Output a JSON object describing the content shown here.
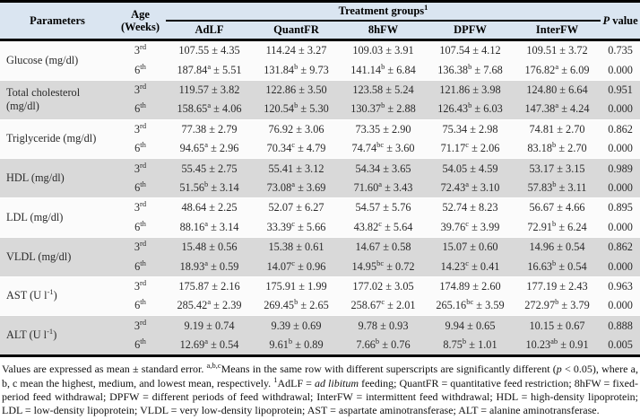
{
  "header": {
    "parameters": "Parameters",
    "age_line1": "Age",
    "age_line2": "(Weeks)",
    "treatment_groups": "Treatment groups^1^",
    "p_value": "~P~ value",
    "columns": [
      "AdLF",
      "QuantFR",
      "8hFW",
      "DPFW",
      "InterFW"
    ]
  },
  "groups": [
    {
      "parameter": "Glucose (mg/dl)",
      "rows": [
        {
          "age": "3^rd^",
          "cells": [
            [
              "107.55",
              "",
              "4.35"
            ],
            [
              "114.24",
              "",
              "3.27"
            ],
            [
              "109.03",
              "",
              "3.91"
            ],
            [
              "107.54",
              "",
              "4.12"
            ],
            [
              "109.51",
              "",
              "3.72"
            ]
          ],
          "p": "0.735"
        },
        {
          "age": "6^th^",
          "cells": [
            [
              "187.84",
              "a",
              "5.51"
            ],
            [
              "131.84",
              "b",
              "9.73"
            ],
            [
              "141.14",
              "b",
              "6.84"
            ],
            [
              "136.38",
              "b",
              "7.68"
            ],
            [
              "176.82",
              "a",
              "6.09"
            ]
          ],
          "p": "0.000"
        }
      ]
    },
    {
      "parameter": "Total cholesterol (mg/dl)",
      "rows": [
        {
          "age": "3^rd^",
          "cells": [
            [
              "119.57",
              "",
              "3.82"
            ],
            [
              "122.86",
              "",
              "3.50"
            ],
            [
              "123.58",
              "",
              "5.24"
            ],
            [
              "121.86",
              "",
              "3.98"
            ],
            [
              "124.80",
              "",
              "6.64"
            ]
          ],
          "p": "0.951"
        },
        {
          "age": "6^th^",
          "cells": [
            [
              "158.65",
              "a",
              "4.06"
            ],
            [
              "120.54",
              "b",
              "5.30"
            ],
            [
              "130.37",
              "b",
              "2.88"
            ],
            [
              "126.43",
              "b",
              "6.03"
            ],
            [
              "147.38",
              "a",
              "4.24"
            ]
          ],
          "p": "0.000"
        }
      ]
    },
    {
      "parameter": "Triglyceride (mg/dl)",
      "rows": [
        {
          "age": "3^rd^",
          "cells": [
            [
              "77.38",
              "",
              "2.79"
            ],
            [
              "76.92",
              "",
              "3.06"
            ],
            [
              "73.35",
              "",
              "2.90"
            ],
            [
              "75.34",
              "",
              "2.98"
            ],
            [
              "74.81",
              "",
              "2.70"
            ]
          ],
          "p": "0.862"
        },
        {
          "age": "6^th^",
          "cells": [
            [
              "94.65",
              "a",
              "2.96"
            ],
            [
              "70.34",
              "c",
              "4.79"
            ],
            [
              "74.74",
              "bc",
              "3.60"
            ],
            [
              "71.17",
              "c",
              "2.06"
            ],
            [
              "83.18",
              "b",
              "2.70"
            ]
          ],
          "p": "0.000"
        }
      ]
    },
    {
      "parameter": "HDL (mg/dl)",
      "rows": [
        {
          "age": "3^rd^",
          "cells": [
            [
              "55.45",
              "",
              "2.75"
            ],
            [
              "55.41",
              "",
              "3.12"
            ],
            [
              "54.34",
              "",
              "3.65"
            ],
            [
              "54.05",
              "",
              "4.59"
            ],
            [
              "53.17",
              "",
              "3.15"
            ]
          ],
          "p": "0.989"
        },
        {
          "age": "6^th^",
          "cells": [
            [
              "51.56",
              "b",
              "3.14"
            ],
            [
              "73.08",
              "a",
              "3.69"
            ],
            [
              "71.60",
              "a",
              "3.43"
            ],
            [
              "72.43",
              "a",
              "3.10"
            ],
            [
              "57.83",
              "b",
              "3.11"
            ]
          ],
          "p": "0.000"
        }
      ]
    },
    {
      "parameter": "LDL (mg/dl)",
      "rows": [
        {
          "age": "3^rd^",
          "cells": [
            [
              "48.64",
              "",
              "2.25"
            ],
            [
              "52.07",
              "",
              "6.27"
            ],
            [
              "54.57",
              "",
              "5.76"
            ],
            [
              "52.74",
              "",
              "8.23"
            ],
            [
              "56.67",
              "",
              "4.66"
            ]
          ],
          "p": "0.895"
        },
        {
          "age": "6^th^",
          "cells": [
            [
              "88.16",
              "a",
              "3.14"
            ],
            [
              "33.39",
              "c",
              "5.66"
            ],
            [
              "43.82",
              "c",
              "5.64"
            ],
            [
              "39.76",
              "c",
              "3.99"
            ],
            [
              "72.91",
              "b",
              "6.24"
            ]
          ],
          "p": "0.000"
        }
      ]
    },
    {
      "parameter": "VLDL (mg/dl)",
      "rows": [
        {
          "age": "3^rd^",
          "cells": [
            [
              "15.48",
              "",
              "0.56"
            ],
            [
              "15.38",
              "",
              "0.61"
            ],
            [
              "14.67",
              "",
              "0.58"
            ],
            [
              "15.07",
              "",
              "0.60"
            ],
            [
              "14.96",
              "",
              "0.54"
            ]
          ],
          "p": "0.862"
        },
        {
          "age": "6^th^",
          "cells": [
            [
              "18.93",
              "a",
              "0.59"
            ],
            [
              "14.07",
              "c",
              "0.96"
            ],
            [
              "14.95",
              "bc",
              "0.72"
            ],
            [
              "14.23",
              "c",
              "0.41"
            ],
            [
              "16.63",
              "b",
              "0.54"
            ]
          ],
          "p": "0.000"
        }
      ]
    },
    {
      "parameter": "AST (U l^-1^)",
      "rows": [
        {
          "age": "3^rd^",
          "cells": [
            [
              "175.87",
              "",
              "2.16"
            ],
            [
              "175.91",
              "",
              "1.99"
            ],
            [
              "177.02",
              "",
              "3.05"
            ],
            [
              "174.89",
              "",
              "2.60"
            ],
            [
              "177.19",
              "",
              "2.43"
            ]
          ],
          "p": "0.963"
        },
        {
          "age": "6^th^",
          "cells": [
            [
              "285.42",
              "a",
              "2.39"
            ],
            [
              "269.45",
              "b",
              "2.65"
            ],
            [
              "258.67",
              "c",
              "2.01"
            ],
            [
              "265.16",
              "bc",
              "3.59"
            ],
            [
              "272.97",
              "b",
              "3.79"
            ]
          ],
          "p": "0.000"
        }
      ]
    },
    {
      "parameter": "ALT (U l^-1^)",
      "rows": [
        {
          "age": "3^rd^",
          "cells": [
            [
              "9.19",
              "",
              "0.74"
            ],
            [
              "9.39",
              "",
              "0.69"
            ],
            [
              "9.78",
              "",
              "0.93"
            ],
            [
              "9.94",
              "",
              "0.65"
            ],
            [
              "10.15",
              "",
              "0.67"
            ]
          ],
          "p": "0.888"
        },
        {
          "age": "6^th^",
          "cells": [
            [
              "12.69",
              "a",
              "0.54"
            ],
            [
              "9.61",
              "b",
              "0.89"
            ],
            [
              "7.66",
              "b",
              "0.76"
            ],
            [
              "8.75",
              "b",
              "1.01"
            ],
            [
              "10.23",
              "ab",
              "0.91"
            ]
          ],
          "p": "0.005"
        }
      ]
    }
  ],
  "footnote": "Values are expressed as mean ± standard error. ^a,b,c^Means in the same row with different superscripts are significantly different (~p~ < 0.05), where a, b, c mean the highest, medium, and lowest mean, respectively. ^1^AdLF = ~ad libitum~ feeding; QuantFR = quantitative feed restriction; 8hFW = fixed-period feed withdrawal; DPFW = different periods of feed withdrawal; InterFW = intermittent feed withdrawal; HDL = high-density lipoprotein; LDL = low-density lipoprotein; VLDL = very low-density lipoprotein; AST = aspartate aminotransferase; ALT = alanine aminotransferase.",
  "colors": {
    "header_bg": "#dae5f1",
    "row_gray": "#d9d9d9",
    "row_white": "#fbfbfb",
    "border": "#000000",
    "text": "#2a2a2a"
  }
}
